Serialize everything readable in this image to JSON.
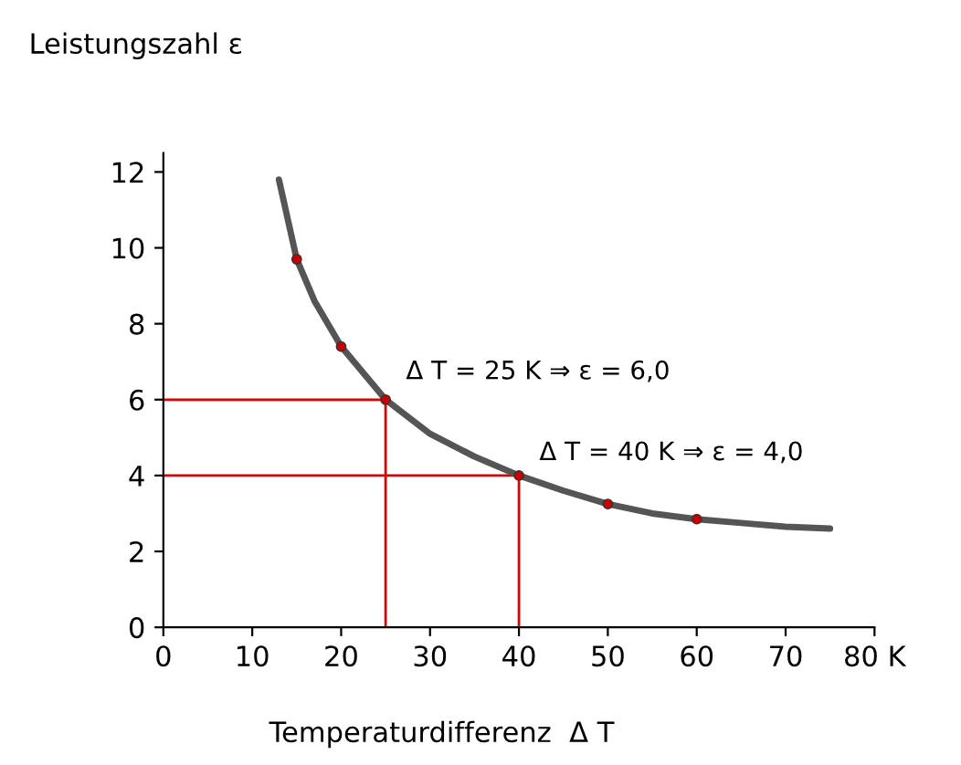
{
  "chart_data": {
    "type": "line",
    "xlabel": "Temperaturdifferenz  Δ T",
    "ylabel": "Leistungszahl ε",
    "xlim": [
      0,
      80
    ],
    "ylim": [
      0,
      12.5
    ],
    "xticks": [
      0,
      10,
      20,
      30,
      40,
      50,
      60,
      70,
      {
        "value": 80,
        "label": "80 K"
      }
    ],
    "yticks": [
      0,
      2,
      4,
      6,
      8,
      10,
      12
    ],
    "grid": false,
    "legend": false,
    "series": [
      {
        "color": "#e00000",
        "x": [
          0,
          25,
          25
        ],
        "values": [
          6,
          6,
          0
        ],
        "marker": "none"
      },
      {
        "color": "#e00000",
        "x": [
          0,
          40,
          40
        ],
        "values": [
          4,
          4,
          0
        ],
        "marker": "none"
      },
      {
        "color": "#555555",
        "x": [
          13,
          15,
          17,
          20,
          25,
          30,
          35,
          40,
          45,
          50,
          55,
          60,
          65,
          70,
          75
        ],
        "values": [
          11.8,
          9.7,
          8.6,
          7.4,
          6.0,
          5.1,
          4.5,
          4.0,
          3.6,
          3.25,
          3.0,
          2.85,
          2.75,
          2.65,
          2.6
        ],
        "marker": "none"
      },
      {
        "type": "scatter",
        "color": "#cc0000",
        "x": [
          15,
          20,
          25,
          40,
          50,
          60
        ],
        "values": [
          9.7,
          7.4,
          6.0,
          4.0,
          3.25,
          2.85
        ],
        "marker": "circle"
      }
    ],
    "annotations": [
      {
        "text": "Δ T = 25 K ⇒ ε = 6,0",
        "x": 25,
        "y": 6
      },
      {
        "text": "Δ T = 40 K ⇒ ε = 4,0",
        "x": 40,
        "y": 4
      }
    ]
  }
}
